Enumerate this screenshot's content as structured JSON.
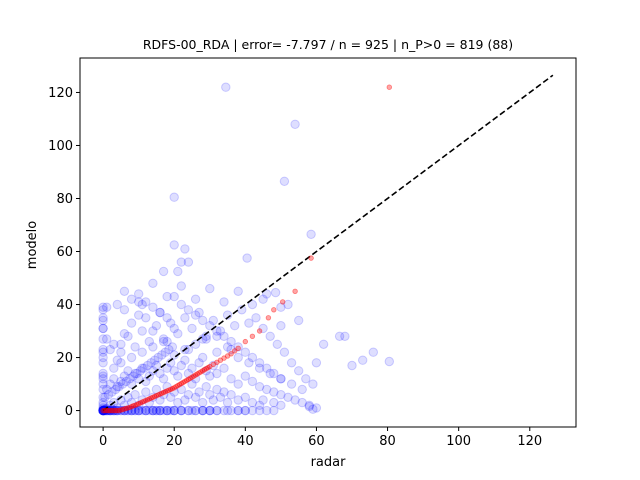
{
  "chart_data": {
    "type": "scatter",
    "title": "RDFS-00_RDA | error= -7.797 / n = 925 | n_P>0 = 819 (88)",
    "xlabel": "radar",
    "ylabel": "modelo",
    "xlim": [
      -6.5,
      133
    ],
    "ylim": [
      -6.2,
      133
    ],
    "xticks": [
      0,
      20,
      40,
      60,
      80,
      100,
      120
    ],
    "yticks": [
      0,
      20,
      40,
      60,
      80,
      100,
      120
    ],
    "grid": false,
    "colors": {
      "observations": "#0000ff",
      "quantile_curve": "#ff0000",
      "identity_line": "#000000",
      "axes": "#000000"
    },
    "identity_line": {
      "x": [
        0,
        126.5
      ],
      "y": [
        0,
        126.5
      ],
      "style": "dashed"
    },
    "series": [
      {
        "x": [
          0,
          0,
          0,
          0,
          0,
          0,
          0,
          0,
          0,
          0,
          0,
          0.5,
          0.3,
          0.8,
          1,
          1.2,
          1.5,
          2,
          2.5,
          3,
          0,
          0,
          0,
          0,
          0,
          0,
          1,
          2,
          3,
          4,
          5,
          6,
          7,
          8,
          9,
          10,
          12,
          14,
          15,
          16,
          18,
          20,
          22,
          25,
          28,
          30,
          32,
          35,
          38,
          40,
          2,
          3,
          4,
          5,
          6,
          7,
          8,
          9,
          10,
          11,
          12,
          13,
          14,
          15,
          16,
          17,
          18,
          19,
          20,
          21,
          22,
          23,
          24,
          25,
          26,
          27,
          28,
          29,
          30,
          31,
          32,
          33,
          34,
          35,
          36,
          38,
          40,
          42,
          44,
          45,
          48,
          50,
          1,
          2,
          3,
          4,
          5,
          6,
          7,
          8,
          9,
          10,
          11,
          12,
          13,
          14,
          15,
          16,
          17,
          18,
          19,
          20,
          21,
          22,
          23,
          24,
          25,
          26,
          27,
          28,
          29,
          30,
          31,
          32,
          34,
          36,
          38,
          40,
          42,
          44,
          46,
          48,
          50,
          52,
          54,
          56,
          58,
          60,
          3,
          5,
          7,
          9,
          11,
          13,
          15,
          17,
          19,
          21,
          23,
          25,
          27,
          29,
          31,
          33,
          35,
          37,
          39,
          41,
          43,
          45,
          47,
          49,
          51,
          53,
          55,
          57,
          59,
          4,
          6,
          8,
          10,
          12,
          14,
          16,
          18,
          20,
          22,
          24,
          26,
          28,
          30,
          32,
          34,
          36,
          38,
          40,
          42,
          44,
          46,
          48,
          50,
          5,
          8,
          11,
          14,
          17,
          20,
          23,
          26,
          29,
          32,
          35,
          38,
          41,
          44,
          47,
          50,
          53,
          56,
          6,
          10,
          14,
          18,
          22,
          26,
          30,
          34,
          38,
          42,
          46,
          50,
          0.5,
          1.5,
          2.5,
          3.5,
          4.5,
          5.5,
          6.5,
          7.5,
          8.5,
          9.5,
          10.5,
          11.5,
          12.5,
          13.5,
          14.5,
          15.5,
          16.5,
          17.5,
          18.5,
          19.5,
          34.5,
          54,
          51,
          20,
          58.5,
          20,
          23,
          21,
          17,
          22,
          24,
          40.5,
          48.5,
          45,
          52,
          55,
          62,
          50,
          60,
          66.5,
          68,
          80.5,
          76,
          73,
          70,
          58,
          59,
          0,
          0,
          0,
          0,
          0,
          1,
          1,
          2,
          3,
          4,
          5,
          6,
          8,
          10,
          11,
          12,
          14,
          16,
          18,
          20,
          24,
          28,
          32,
          36,
          0,
          0,
          0.2,
          0.4,
          0.6,
          1,
          1.5,
          2,
          2.5,
          3,
          3.5,
          4,
          5,
          6,
          7,
          8,
          9,
          10,
          11,
          12,
          13,
          14,
          15,
          16,
          17,
          18,
          19,
          20,
          22,
          24,
          26,
          28,
          30,
          2,
          4,
          6,
          8,
          10,
          12,
          14,
          16,
          18,
          20,
          22,
          24,
          26,
          28,
          30,
          32,
          34,
          36,
          38,
          40,
          42,
          44,
          46,
          48,
          0,
          0,
          0,
          0,
          0,
          0,
          0,
          0
        ],
        "y": [
          0,
          0.5,
          1,
          2,
          3,
          5,
          8,
          10,
          13,
          20,
          27,
          0,
          0.3,
          0.5,
          0.8,
          0,
          0.2,
          0,
          0.5,
          0,
          31,
          39,
          35,
          23,
          18,
          14,
          0,
          0,
          0,
          0,
          0,
          0,
          0,
          0,
          0,
          0,
          0,
          0,
          0,
          0,
          0,
          0,
          0,
          0,
          0,
          0,
          0,
          0,
          0,
          0,
          2,
          3,
          1,
          4,
          2,
          5,
          3,
          6,
          2,
          4,
          7,
          3,
          5,
          8,
          4,
          6,
          9,
          5,
          7,
          3,
          8,
          4,
          6,
          10,
          5,
          7,
          3,
          9,
          6,
          4,
          8,
          5,
          7,
          3,
          6,
          4,
          5,
          3,
          2,
          4,
          3,
          2,
          8,
          10,
          12,
          9,
          11,
          13,
          15,
          10,
          14,
          12,
          16,
          11,
          13,
          15,
          17,
          14,
          12,
          16,
          18,
          15,
          13,
          17,
          19,
          14,
          16,
          12,
          18,
          20,
          15,
          13,
          17,
          14,
          16,
          12,
          10,
          13,
          11,
          9,
          8,
          7,
          6,
          5,
          4,
          3,
          2,
          1,
          25,
          22,
          28,
          24,
          30,
          26,
          32,
          27,
          33,
          29,
          35,
          31,
          37,
          28,
          34,
          30,
          36,
          32,
          38,
          33,
          35,
          31,
          28,
          25,
          22,
          18,
          15,
          12,
          10,
          40,
          38,
          42,
          36,
          41,
          39,
          37,
          35,
          43,
          40,
          38,
          36,
          34,
          32,
          30,
          28,
          26,
          24,
          22,
          20,
          18,
          16,
          14,
          12,
          18,
          20,
          22,
          24,
          26,
          21,
          23,
          25,
          27,
          22,
          24,
          20,
          18,
          16,
          14,
          12,
          10,
          8,
          45,
          44,
          48,
          43,
          47,
          42,
          46,
          41,
          45,
          40,
          44,
          39,
          5,
          6,
          7,
          8,
          9,
          10,
          11,
          12,
          13,
          14,
          15,
          16,
          17,
          18,
          19,
          20,
          21,
          22,
          23,
          24,
          122,
          108,
          86.5,
          80.5,
          66.5,
          62.5,
          61,
          52.5,
          52.5,
          56,
          56,
          57.5,
          44.5,
          42,
          40,
          34,
          25,
          32,
          18,
          28,
          28,
          18.5,
          22,
          19,
          17,
          1.5,
          0.5,
          31,
          34,
          38,
          22,
          12,
          39,
          27,
          23,
          16,
          19,
          25,
          29,
          33,
          41,
          40,
          35,
          30,
          37,
          26,
          31,
          23,
          27,
          28,
          23,
          0,
          0,
          0,
          0,
          0,
          0,
          0,
          0,
          0,
          0,
          0,
          0,
          0,
          0,
          0,
          0,
          0,
          0,
          0,
          0,
          0,
          0,
          0,
          0,
          0,
          0,
          0,
          0,
          0,
          0,
          0,
          0,
          0,
          0,
          0,
          0,
          0,
          0,
          0,
          0,
          0,
          0,
          0,
          0,
          0,
          0,
          0,
          0,
          0,
          0,
          0,
          0,
          0,
          0,
          0,
          0,
          0,
          0,
          0,
          0,
          0,
          0,
          0,
          0,
          0
        ]
      },
      {
        "x": [
          0,
          0.5,
          1,
          1.5,
          2,
          2.5,
          3,
          3.5,
          4,
          4.5,
          5,
          5.5,
          6,
          6.5,
          7,
          7.5,
          8,
          8.5,
          9,
          9.5,
          10,
          10.5,
          11,
          11.5,
          12,
          12.5,
          13,
          13.5,
          14,
          14.5,
          15,
          15.5,
          16,
          16.5,
          17,
          17.5,
          18,
          18.5,
          19,
          19.5,
          20,
          20.5,
          21,
          21.5,
          22,
          22.5,
          23,
          23.5,
          24,
          24.5,
          25,
          25.5,
          26,
          26.5,
          27,
          27.5,
          28,
          28.5,
          29,
          29.5,
          30,
          31,
          32,
          33,
          34,
          35,
          36,
          37,
          38,
          40,
          42,
          44,
          46.5,
          48,
          50.5,
          54,
          58.5,
          80.5
        ],
        "y": [
          0,
          0,
          0,
          0,
          0,
          0,
          0,
          0,
          0,
          0,
          0.2,
          0.4,
          0.6,
          0.8,
          1,
          1.2,
          1.5,
          1.8,
          2,
          2.3,
          2.6,
          2.9,
          3.2,
          3.5,
          3.8,
          4.1,
          4.4,
          4.7,
          5,
          5.3,
          5.6,
          5.9,
          6.2,
          6.5,
          6.8,
          7.1,
          7.4,
          7.7,
          8,
          8.3,
          8.6,
          9,
          9.4,
          9.8,
          10.2,
          10.6,
          11,
          11.4,
          11.8,
          12.2,
          12.6,
          13,
          13.4,
          13.8,
          14.2,
          14.6,
          15,
          15.4,
          15.8,
          16.2,
          16.6,
          17.4,
          18.2,
          19,
          19.8,
          20.6,
          21.4,
          22.5,
          23.5,
          26,
          28,
          30,
          35,
          38,
          41,
          45,
          57.5,
          122
        ]
      }
    ]
  }
}
